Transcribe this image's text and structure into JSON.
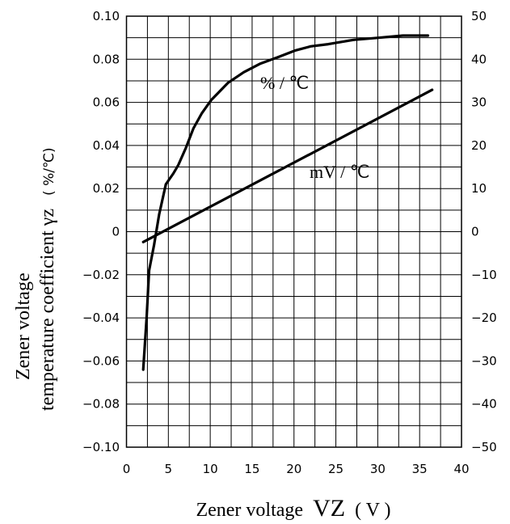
{
  "chart_data": {
    "type": "line",
    "xlabel": "Zener voltage",
    "xlabel_symbol": "VZ",
    "xlabel_unit": "( V )",
    "ylabel_line1": "Zener voltage",
    "ylabel_line2": "temperature coefficient γz",
    "ylabel_unit": "( %/℃)",
    "xlim": [
      0,
      40
    ],
    "ylim_left": [
      -0.1,
      0.1
    ],
    "ylim_right": [
      -50,
      50
    ],
    "grid": true,
    "x_ticks": [
      "0",
      "5",
      "10",
      "15",
      "20",
      "25",
      "30",
      "35",
      "40"
    ],
    "y_left_ticks": [
      "0.10",
      "0.08",
      "0.06",
      "0.04",
      "0.02",
      "0",
      "−0.02",
      "−0.04",
      "−0.06",
      "−0.08",
      "−0.10"
    ],
    "y_right_ticks": [
      "50",
      "40",
      "30",
      "20",
      "10",
      "0",
      "−10",
      "−20",
      "−30",
      "−40",
      "−50"
    ],
    "series": [
      {
        "name": "% / ℃",
        "axis": "left",
        "x": [
          2.0,
          2.4,
          2.7,
          3.3,
          3.9,
          4.7,
          5.6,
          6.2,
          7.1,
          8.0,
          9.0,
          10.1,
          12.1,
          14.0,
          16.0,
          18.1,
          20.1,
          22.0,
          24.1,
          27.1,
          30.1,
          33.0,
          36.0
        ],
        "y": [
          -0.064,
          -0.04,
          -0.018,
          -0.006,
          0.008,
          0.022,
          0.027,
          0.031,
          0.039,
          0.048,
          0.055,
          0.061,
          0.069,
          0.074,
          0.078,
          0.081,
          0.084,
          0.086,
          0.087,
          0.089,
          0.09,
          0.091,
          0.091
        ]
      },
      {
        "name": "mV / ℃",
        "axis": "right",
        "x": [
          2.0,
          36.5
        ],
        "y": [
          -2.4,
          32.9
        ]
      }
    ]
  }
}
